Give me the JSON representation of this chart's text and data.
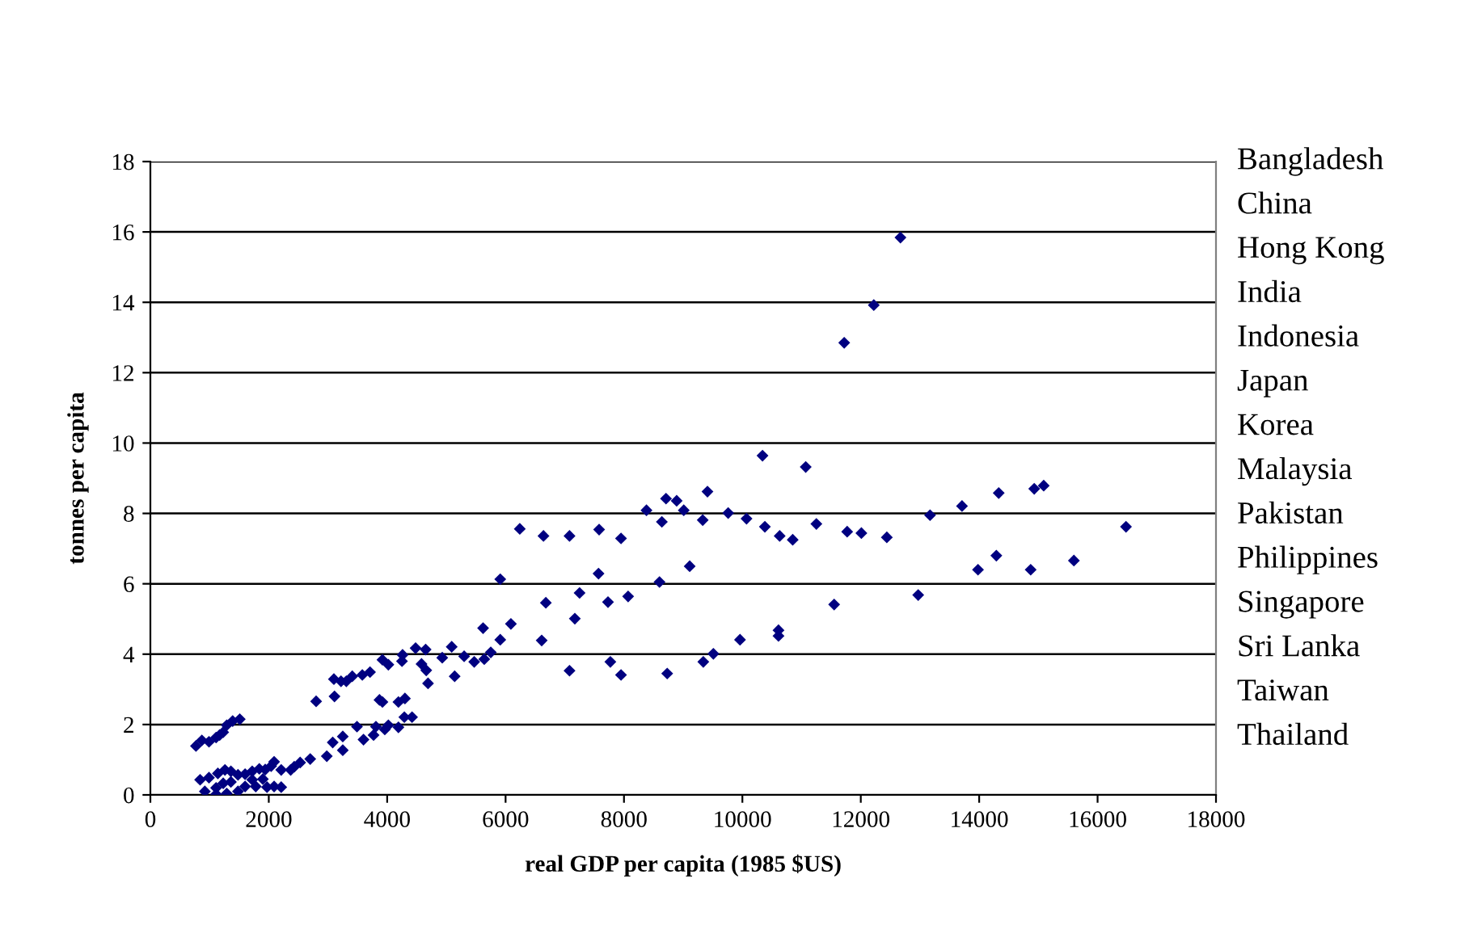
{
  "chart_data": {
    "type": "scatter",
    "xlabel": "real GDP per capita (1985 $US)",
    "ylabel": "tonnes per capita",
    "xlim": [
      0,
      18000
    ],
    "xticks": [
      0,
      2000,
      4000,
      6000,
      8000,
      10000,
      12000,
      14000,
      16000,
      18000
    ],
    "ylim": [
      0,
      18
    ],
    "yticks": [
      0,
      2,
      4,
      6,
      8,
      10,
      12,
      14,
      16,
      18
    ],
    "grid": "y",
    "legend": false,
    "marker": "diamond",
    "series": [
      {
        "color": "#000080",
        "x": [
          12670,
          12220,
          11720,
          10340,
          11070,
          15090,
          14930,
          14330,
          13710,
          13170,
          16480,
          9410,
          8710,
          8890,
          8380,
          9010,
          8640,
          9330,
          9760,
          10070,
          10380,
          10630,
          10850,
          11250,
          11770,
          12010,
          12440,
          6240,
          6640,
          7080,
          7580,
          7950,
          5910,
          7570,
          8600,
          9110,
          13980,
          14290,
          14870,
          15600,
          12970,
          11550,
          6680,
          7250,
          7730,
          8070,
          7170,
          6610,
          6090,
          5620,
          5910,
          5750,
          5640,
          5470,
          5300,
          5090,
          4930,
          5140,
          4650,
          4480,
          4580,
          4660,
          4690,
          4260,
          4250,
          4020,
          3920,
          3710,
          3580,
          3410,
          3310,
          3220,
          3100,
          3110,
          2800,
          3870,
          3920,
          4190,
          4300,
          4290,
          4420,
          4020,
          3960,
          4190,
          3810,
          3770,
          3600,
          3490,
          3250,
          3250,
          3080,
          2980,
          2700,
          2530,
          2430,
          2370,
          2210,
          2210,
          2090,
          2040,
          1940,
          1840,
          1720,
          1600,
          1480,
          1360,
          1260,
          1140,
          990,
          840,
          920,
          1110,
          1290,
          1480,
          1600,
          1780,
          1970,
          2090,
          1110,
          1360,
          1720,
          1900,
          1230,
          770,
          870,
          990,
          1110,
          1230,
          1290,
          1390,
          1510,
          1170,
          7080,
          7770,
          7950,
          8730,
          9340,
          9510,
          9960,
          10610,
          10610
        ],
        "values": [
          15.84,
          13.92,
          12.85,
          9.64,
          9.32,
          8.79,
          8.7,
          8.58,
          8.21,
          7.95,
          7.62,
          8.62,
          8.42,
          8.36,
          8.09,
          8.09,
          7.76,
          7.81,
          8.01,
          7.85,
          7.62,
          7.36,
          7.25,
          7.7,
          7.48,
          7.44,
          7.32,
          7.56,
          7.36,
          7.36,
          7.54,
          7.29,
          6.13,
          6.29,
          6.05,
          6.5,
          6.4,
          6.8,
          6.4,
          6.66,
          5.68,
          5.41,
          5.46,
          5.74,
          5.48,
          5.64,
          5.01,
          4.39,
          4.86,
          4.74,
          4.41,
          4.05,
          3.86,
          3.78,
          3.94,
          4.21,
          3.9,
          3.37,
          4.13,
          4.17,
          3.72,
          3.54,
          3.17,
          3.98,
          3.8,
          3.7,
          3.84,
          3.49,
          3.41,
          3.37,
          3.23,
          3.23,
          3.29,
          2.8,
          2.66,
          2.7,
          2.64,
          2.64,
          2.74,
          2.21,
          2.21,
          1.98,
          1.86,
          1.92,
          1.94,
          1.7,
          1.57,
          1.94,
          1.66,
          1.27,
          1.49,
          1.1,
          1.02,
          0.92,
          0.8,
          0.71,
          0.71,
          0.22,
          0.94,
          0.82,
          0.72,
          0.74,
          0.67,
          0.59,
          0.57,
          0.67,
          0.71,
          0.61,
          0.49,
          0.43,
          0.1,
          0.02,
          0.04,
          0.1,
          0.24,
          0.24,
          0.22,
          0.24,
          0.2,
          0.37,
          0.43,
          0.45,
          0.33,
          1.39,
          1.55,
          1.51,
          1.63,
          1.78,
          1.98,
          2.1,
          2.15,
          1.7,
          3.53,
          3.78,
          3.41,
          3.45,
          3.78,
          4.01,
          4.41,
          4.68,
          4.52
        ]
      }
    ],
    "annotations": [
      "Bangladesh",
      "China",
      "Hong Kong",
      "India",
      "Indonesia",
      "Japan",
      "Korea",
      "Malaysia",
      "Pakistan",
      "Philippines",
      "Singapore",
      "Sri Lanka",
      "Taiwan",
      "Thailand"
    ]
  }
}
